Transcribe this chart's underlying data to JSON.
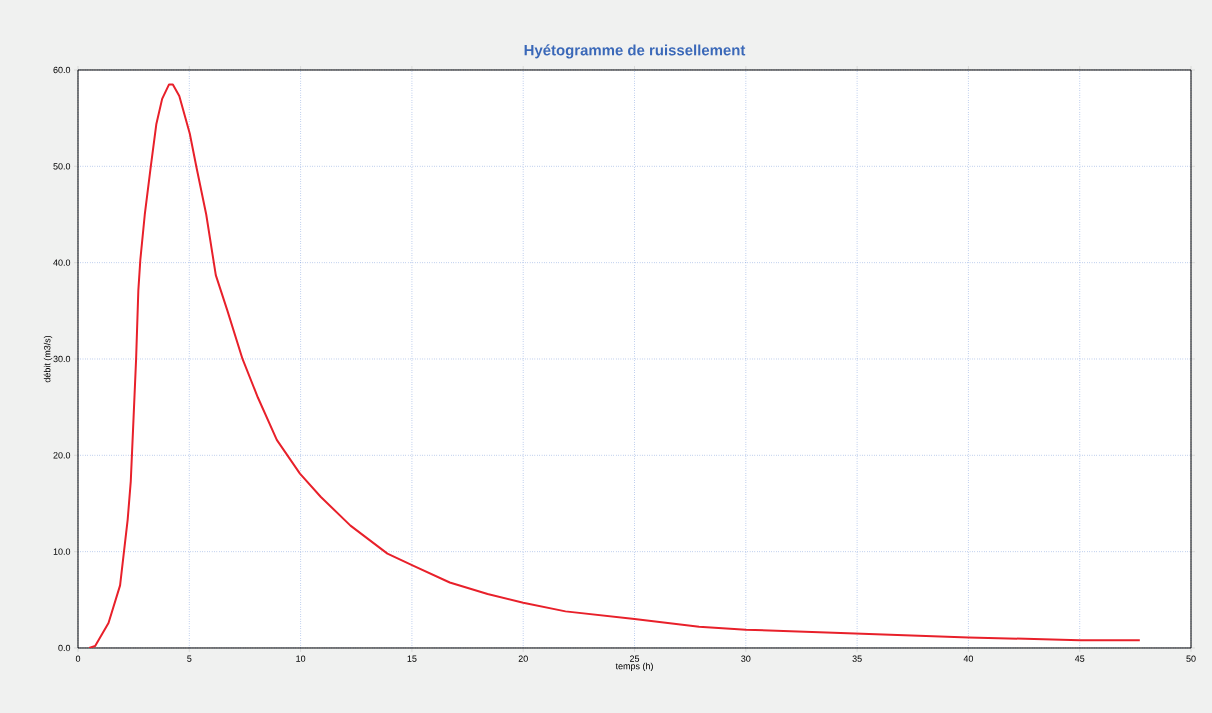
{
  "chart_data": {
    "type": "line",
    "title": "Hyétogramme de ruissellement",
    "xlabel": "temps (h)",
    "ylabel": "débit (m3/s)",
    "x": [
      0.5,
      0.77,
      1.37,
      1.89,
      2.23,
      2.37,
      2.49,
      2.61,
      2.71,
      2.8,
      3.0,
      3.26,
      3.52,
      3.78,
      4.09,
      4.26,
      4.55,
      5.02,
      5.33,
      5.76,
      6.19,
      6.7,
      7.39,
      8.08,
      8.93,
      9.97,
      10.9,
      12.24,
      13.9,
      15.1,
      16.7,
      18.4,
      20.0,
      21.9,
      25.0,
      27.9,
      30.0,
      34.9,
      40.0,
      45.0,
      47.7
    ],
    "series": [
      {
        "color": "#e8202a",
        "values": [
          0.0,
          0.2,
          2.6,
          6.5,
          13.3,
          17.3,
          23.6,
          30.0,
          37.1,
          40.3,
          45.0,
          49.8,
          54.4,
          57.0,
          58.5,
          58.5,
          57.3,
          53.4,
          49.8,
          45.0,
          38.7,
          35.1,
          30.0,
          26.0,
          21.6,
          18.1,
          15.7,
          12.7,
          9.8,
          8.5,
          6.8,
          5.6,
          4.7,
          3.8,
          3.0,
          2.2,
          1.9,
          1.5,
          1.1,
          0.8,
          0.8
        ]
      }
    ],
    "xlim": [
      0,
      50
    ],
    "xticks": [
      0,
      5,
      10,
      15,
      20,
      25,
      30,
      35,
      40,
      45,
      50
    ],
    "ylim": [
      0,
      60
    ],
    "yticks": [
      {
        "value": 0,
        "label": "0.0"
      },
      {
        "value": 10,
        "label": "10.0"
      },
      {
        "value": 20,
        "label": "20.0"
      },
      {
        "value": 30,
        "label": "30.0"
      },
      {
        "value": 40,
        "label": "40.0"
      },
      {
        "value": 50,
        "label": "50.0"
      },
      {
        "value": 60,
        "label": "60.0"
      }
    ],
    "grid": true,
    "marker": "none",
    "line_style": "solid"
  }
}
